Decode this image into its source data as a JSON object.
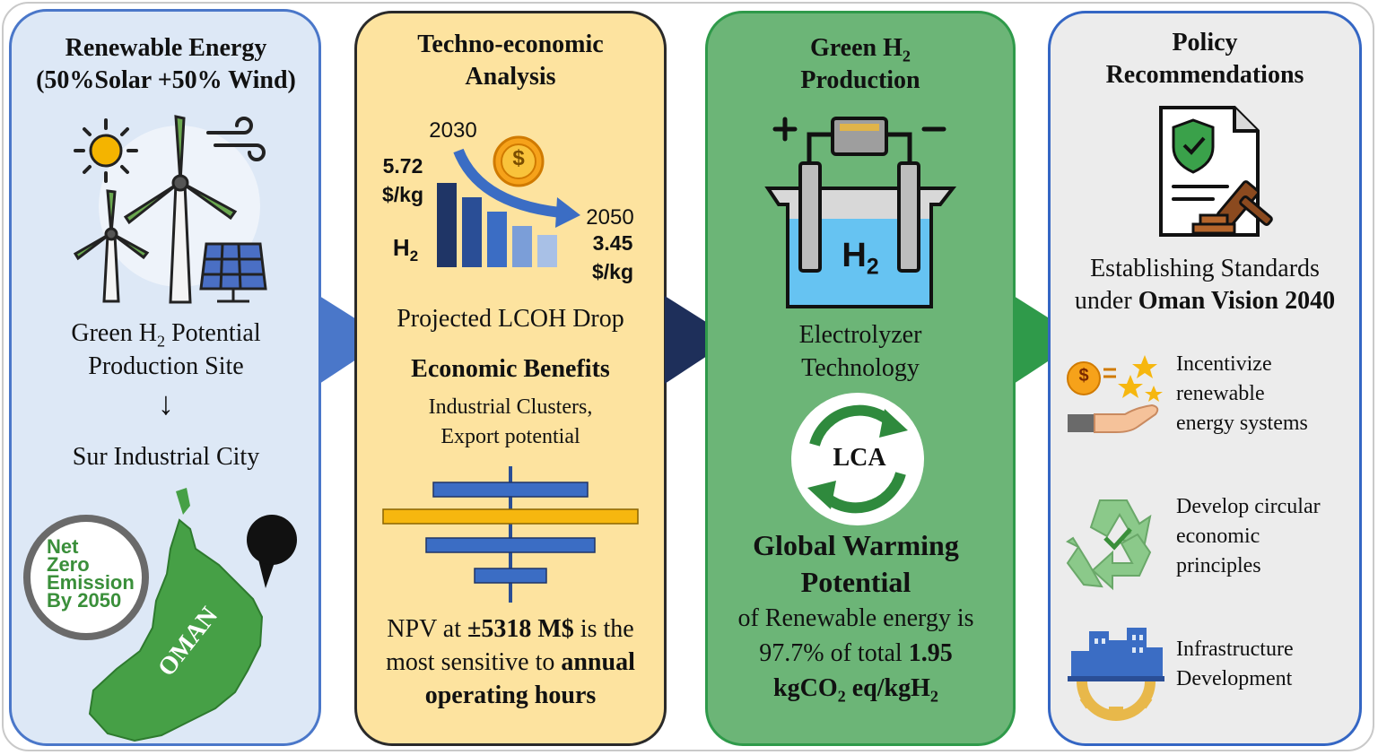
{
  "panel1": {
    "title_line1": "Renewable Energy",
    "title_line2": "(50%Solar +50% Wind)",
    "site_line1_pre": "Green H",
    "site_line1_sub": "2",
    "site_line1_post": " Potential",
    "site_line2": "Production Site",
    "arrow": "↓",
    "city": "Sur Industrial City",
    "badge": [
      "Net",
      "Zero",
      "Emission",
      "By 2050"
    ],
    "map_label": "OMAN"
  },
  "panel2": {
    "title_line1": "Techno-economic",
    "title_line2": "Analysis",
    "year_start": "2030",
    "price_start_line1": "5.72",
    "price_start_line2": "$/kg",
    "year_end": "2050",
    "price_end_line1": "3.45",
    "price_end_line2": "$/kg",
    "h2_main": "H",
    "h2_sub": "2",
    "coin_symbol": "$",
    "caption": "Projected LCOH Drop",
    "benefits_title": "Economic Benefits",
    "benefits_line1": "Industrial Clusters,",
    "benefits_line2": "Export potential",
    "npv_line1_pre": "NPV at ",
    "npv_line1_bold": "±5318 M$",
    "npv_line1_post": " is the",
    "npv_line2_pre": "most sensitive to ",
    "npv_line2_bold": "annual",
    "npv_line3_bold": "operating hours"
  },
  "panel3": {
    "title_line1_pre": "Green H",
    "title_line1_sub": "2",
    "title_line2": "Production",
    "tank_main": "H",
    "tank_sub": "2",
    "tech_line1": "Electrolyzer",
    "tech_line2": "Technology",
    "lca": "LCA",
    "gwp_line1": "Global Warming",
    "gwp_line2": "Potential",
    "gwp_line3": "of Renewable energy is",
    "gwp_line4_pre": "97.7% of total ",
    "gwp_line4_bold": "1.95",
    "gwp_line5_a": "kgCO",
    "gwp_line5_sub1": "2",
    "gwp_line5_b": " eq/kgH",
    "gwp_line5_sub2": "2"
  },
  "panel4": {
    "title_line1": "Policy",
    "title_line2": "Recommendations",
    "std_line1": "Establishing Standards",
    "std_line2_pre": "under ",
    "std_line2_bold": "Oman Vision 2040",
    "item1": [
      "Incentivize",
      "renewable",
      "energy systems"
    ],
    "item1_coin": "$",
    "item2": [
      "Develop circular",
      "economic",
      "principles"
    ],
    "item3": [
      "Infrastructure",
      "Development"
    ]
  },
  "colors": {
    "panel1_bg": "#dde8f6",
    "panel2_bg": "#fde39f",
    "panel3_bg": "#6cb577",
    "panel4_bg": "#ececec",
    "arrow1": "#4a77c9",
    "arrow2": "#1e2f5a",
    "arrow3": "#2f9a4a"
  }
}
